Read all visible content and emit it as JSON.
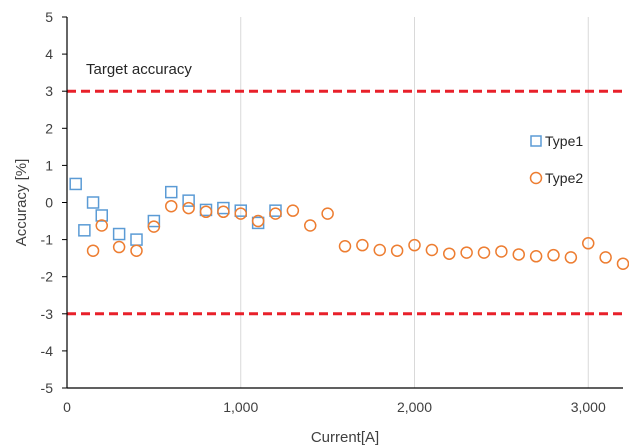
{
  "chart_data": {
    "type": "scatter",
    "xlabel": "Current[A]",
    "ylabel": "Accuracy [%]",
    "xlim": [
      0,
      3200
    ],
    "ylim": [
      -5,
      5
    ],
    "x_ticks": [
      0,
      1000,
      2000,
      3000
    ],
    "x_tick_labels": [
      "0",
      "1,000",
      "2,000",
      "3,000"
    ],
    "y_ticks": [
      -5,
      -4,
      -3,
      -2,
      -1,
      0,
      1,
      2,
      3,
      4,
      5
    ],
    "y_tick_labels": [
      "-5",
      "-4",
      "-3",
      "-2",
      "-1",
      "0",
      "1",
      "2",
      "3",
      "4",
      "5"
    ],
    "grid": "vertical",
    "legend": "right",
    "annotation": "Target accuracy",
    "reference_lines": [
      {
        "y": 3,
        "color": "#e8202a",
        "style": "dashed"
      },
      {
        "y": -3,
        "color": "#e8202a",
        "style": "dashed"
      }
    ],
    "series": [
      {
        "name": "Type1",
        "marker": "square",
        "color": "#5b9bd5",
        "points": [
          [
            50,
            0.5
          ],
          [
            100,
            -0.75
          ],
          [
            150,
            0.0
          ],
          [
            200,
            -0.35
          ],
          [
            300,
            -0.85
          ],
          [
            400,
            -1.0
          ],
          [
            500,
            -0.5
          ],
          [
            600,
            0.28
          ],
          [
            700,
            0.05
          ],
          [
            800,
            -0.2
          ],
          [
            900,
            -0.15
          ],
          [
            1000,
            -0.22
          ],
          [
            1100,
            -0.55
          ],
          [
            1200,
            -0.22
          ]
        ]
      },
      {
        "name": "Type2",
        "marker": "circle",
        "color": "#ed7d31",
        "points": [
          [
            150,
            -1.3
          ],
          [
            200,
            -0.62
          ],
          [
            300,
            -1.2
          ],
          [
            400,
            -1.3
          ],
          [
            500,
            -0.65
          ],
          [
            600,
            -0.1
          ],
          [
            700,
            -0.15
          ],
          [
            800,
            -0.25
          ],
          [
            900,
            -0.25
          ],
          [
            1000,
            -0.3
          ],
          [
            1100,
            -0.5
          ],
          [
            1200,
            -0.3
          ],
          [
            1300,
            -0.22
          ],
          [
            1400,
            -0.62
          ],
          [
            1500,
            -0.3
          ],
          [
            1600,
            -1.18
          ],
          [
            1700,
            -1.15
          ],
          [
            1800,
            -1.28
          ],
          [
            1900,
            -1.3
          ],
          [
            2000,
            -1.15
          ],
          [
            2100,
            -1.28
          ],
          [
            2200,
            -1.38
          ],
          [
            2300,
            -1.35
          ],
          [
            2400,
            -1.35
          ],
          [
            2500,
            -1.32
          ],
          [
            2600,
            -1.4
          ],
          [
            2700,
            -1.45
          ],
          [
            2800,
            -1.42
          ],
          [
            2900,
            -1.48
          ],
          [
            3000,
            -1.1
          ],
          [
            3100,
            -1.48
          ],
          [
            3200,
            -1.65
          ]
        ]
      }
    ]
  }
}
